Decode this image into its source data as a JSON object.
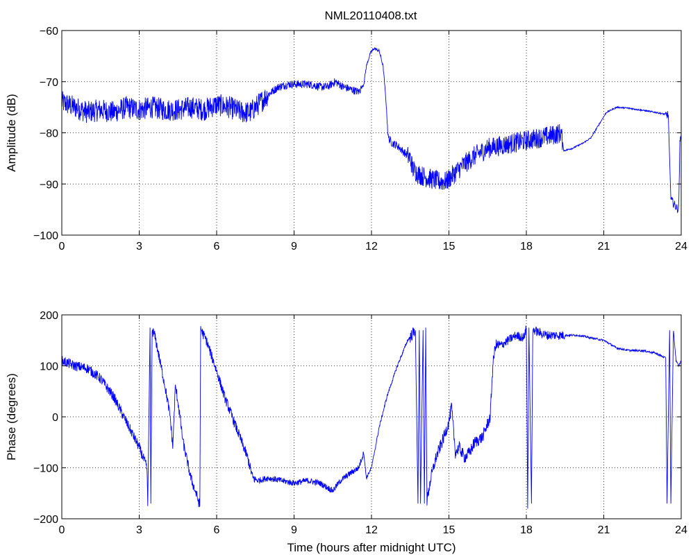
{
  "figure": {
    "title": "NML20110408.txt"
  },
  "chart_data": [
    {
      "type": "line",
      "title": "NML20110408.txt",
      "xlabel": "",
      "ylabel": "Amplitude (dB)",
      "xlim": [
        0,
        24
      ],
      "ylim": [
        -100,
        -60
      ],
      "xticks": [
        0,
        3,
        6,
        9,
        12,
        15,
        18,
        21,
        24
      ],
      "xtick_labels": [
        "0",
        "3",
        "6",
        "9",
        "12",
        "15",
        "18",
        "21",
        "24"
      ],
      "yticks": [
        -100,
        -90,
        -80,
        -70,
        -60
      ],
      "ytick_labels": [
        "−100",
        "−90",
        "−80",
        "−70",
        "−60"
      ],
      "grid": true,
      "color": "#0000ff",
      "series": [
        {
          "x": [
            0,
            0.5,
            1,
            1.5,
            2,
            2.5,
            3,
            3.5,
            4,
            4.5,
            5,
            5.5,
            6,
            6.5,
            7,
            7.3,
            7.6,
            8,
            8.4,
            8.8,
            9.2,
            9.6,
            10,
            10.3,
            10.6,
            10.9,
            11.2,
            11.5,
            11.7,
            11.8,
            11.95,
            12.1,
            12.3,
            12.45,
            12.55,
            12.65,
            12.8,
            13,
            13.3,
            13.5,
            13.6,
            13.8,
            14,
            14.3,
            14.6,
            14.9,
            15.2,
            15.5,
            16,
            16.5,
            17,
            17.5,
            18,
            18.5,
            19,
            19.35,
            19.45,
            19.8,
            20.2,
            20.5,
            20.8,
            21.1,
            21.5,
            22,
            22.5,
            23,
            23.3,
            23.5,
            23.6,
            23.8,
            23.9,
            23.95,
            24
          ],
          "y": [
            -74,
            -75,
            -76,
            -75.5,
            -76,
            -75,
            -75.5,
            -75,
            -75.5,
            -75.5,
            -75,
            -75.5,
            -74.5,
            -75,
            -76,
            -76,
            -74.5,
            -72.5,
            -71,
            -70.5,
            -70.5,
            -70.5,
            -71,
            -71,
            -70,
            -71,
            -71.5,
            -72,
            -70.5,
            -67,
            -64.5,
            -63.5,
            -64,
            -67,
            -73,
            -81,
            -82,
            -82.5,
            -84,
            -85,
            -87,
            -88,
            -88.5,
            -89,
            -89.5,
            -89.5,
            -88,
            -86.5,
            -84.5,
            -83,
            -82.5,
            -82,
            -81.5,
            -81,
            -80.5,
            -80,
            -83.5,
            -83,
            -82,
            -81,
            -78.5,
            -76,
            -75,
            -75.2,
            -75.6,
            -76,
            -76.3,
            -76.5,
            -93,
            -94.5,
            -95,
            -82,
            -80
          ]
        }
      ]
    },
    {
      "type": "line",
      "title": "",
      "xlabel": "Time (hours after midnight UTC)",
      "ylabel": "Phase (degrees)",
      "xlim": [
        0,
        24
      ],
      "ylim": [
        -200,
        200
      ],
      "xticks": [
        0,
        3,
        6,
        9,
        12,
        15,
        18,
        21,
        24
      ],
      "xtick_labels": [
        "0",
        "3",
        "6",
        "9",
        "12",
        "15",
        "18",
        "21",
        "24"
      ],
      "yticks": [
        -200,
        -100,
        0,
        100,
        200
      ],
      "ytick_labels": [
        "−200",
        "−100",
        "0",
        "100",
        "200"
      ],
      "grid": true,
      "color": "#0000ff",
      "series": [
        {
          "x": [
            0,
            0.5,
            1,
            1.5,
            2,
            2.5,
            3,
            3.3,
            3.33,
            3.42,
            3.45,
            3.5,
            3.6,
            3.8,
            4,
            4.2,
            4.3,
            4.4,
            4.5,
            4.7,
            5,
            5.2,
            5.35,
            5.38,
            5.45,
            5.6,
            5.8,
            6,
            6.3,
            6.6,
            6.9,
            7.2,
            7.4,
            7.6,
            8,
            8.5,
            9,
            9.5,
            10,
            10.5,
            10.8,
            11.2,
            11.5,
            11.7,
            11.8,
            12,
            12.3,
            12.6,
            13,
            13.4,
            13.7,
            13.8,
            13.85,
            13.9,
            14,
            14.05,
            14.1,
            14.15,
            14.3,
            14.5,
            14.8,
            15,
            15.1,
            15.25,
            15.4,
            15.6,
            15.8,
            16,
            16.3,
            16.6,
            16.7,
            16.8,
            17,
            17.3,
            17.6,
            17.9,
            18,
            18.05,
            18.1,
            18.2,
            18.25,
            18.3,
            18.5,
            18.8,
            19,
            19.5,
            20,
            20.5,
            21,
            21.5,
            22,
            22.5,
            23,
            23.4,
            23.45,
            23.55,
            23.6,
            23.7,
            23.8,
            23.9,
            24
          ],
          "y": [
            110,
            100,
            95,
            75,
            40,
            -10,
            -60,
            -100,
            -175,
            175,
            -170,
            170,
            160,
            110,
            60,
            0,
            -60,
            60,
            30,
            -50,
            -120,
            -150,
            -175,
            175,
            165,
            150,
            120,
            90,
            40,
            0,
            -40,
            -80,
            -120,
            -125,
            -120,
            -125,
            -130,
            -125,
            -130,
            -145,
            -125,
            -110,
            -100,
            -70,
            -120,
            -100,
            -20,
            40,
            100,
            150,
            170,
            -170,
            170,
            -170,
            170,
            -170,
            175,
            -165,
            -120,
            -80,
            -40,
            -10,
            20,
            -70,
            -60,
            -80,
            -70,
            -50,
            -40,
            0,
            100,
            140,
            140,
            150,
            160,
            155,
            175,
            -180,
            175,
            -170,
            170,
            170,
            165,
            160,
            160,
            160,
            160,
            155,
            150,
            135,
            130,
            130,
            125,
            115,
            -170,
            170,
            -170,
            170,
            110,
            100,
            110
          ]
        }
      ]
    }
  ]
}
